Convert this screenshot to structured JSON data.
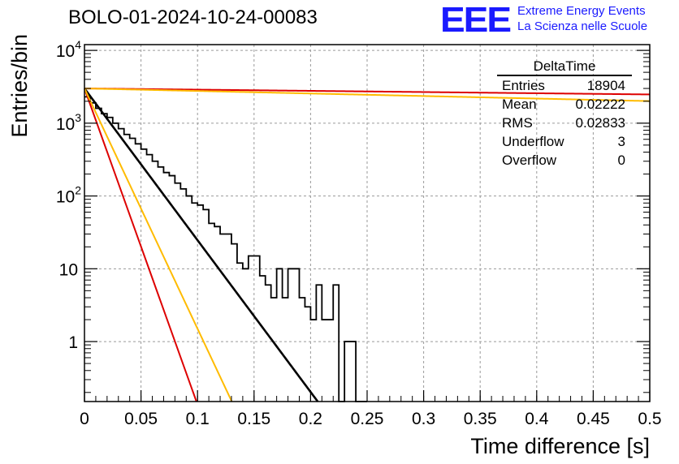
{
  "title": "BOLO-01-2024-10-24-00083",
  "logo": {
    "mark": "EEE",
    "line1": "Extreme Energy Events",
    "line2": "La Scienza nelle Scuole",
    "color": "#1a1aff"
  },
  "stats": {
    "name": "DeltaTime",
    "rows": [
      {
        "label": "Entries",
        "value": "18904"
      },
      {
        "label": "Mean",
        "value": "0.02222"
      },
      {
        "label": "RMS",
        "value": "0.02833"
      },
      {
        "label": "Underflow",
        "value": "3"
      },
      {
        "label": "Overflow",
        "value": "0"
      }
    ]
  },
  "chart_data": {
    "type": "line",
    "xlabel": "Time difference [s]",
    "ylabel": "Entries/bin",
    "xlim": [
      0,
      0.5
    ],
    "ylim": [
      0.15,
      12000
    ],
    "yscale": "log",
    "grid": true,
    "x_ticks": [
      "0",
      "0.05",
      "0.1",
      "0.15",
      "0.2",
      "0.25",
      "0.3",
      "0.35",
      "0.4",
      "0.45",
      "0.5"
    ],
    "x_tick_values": [
      0,
      0.05,
      0.1,
      0.15,
      0.2,
      0.25,
      0.3,
      0.35,
      0.4,
      0.45,
      0.5
    ],
    "y_ticks": [
      {
        "value": 1,
        "base": "1",
        "exp": ""
      },
      {
        "value": 10,
        "base": "10",
        "exp": ""
      },
      {
        "value": 100,
        "base": "10",
        "exp": "2"
      },
      {
        "value": 1000,
        "base": "10",
        "exp": "3"
      },
      {
        "value": 10000,
        "base": "10",
        "exp": "4"
      }
    ],
    "histogram": {
      "bin_width": 0.005,
      "color": "#000000",
      "values": [
        2300,
        1900,
        1600,
        1350,
        1200,
        1000,
        840,
        700,
        620,
        520,
        440,
        370,
        300,
        250,
        210,
        190,
        150,
        125,
        100,
        80,
        75,
        65,
        42,
        38,
        30,
        30,
        22,
        12,
        10,
        15,
        15,
        8,
        6,
        4,
        10,
        4,
        10,
        10,
        4,
        3,
        2,
        6,
        2,
        2,
        6,
        0,
        1,
        1,
        0,
        0
      ]
    },
    "curves": [
      {
        "color": "#000000",
        "y0": 3000,
        "rate": 48
      },
      {
        "color": "#dd0000",
        "y0": 3000,
        "rate": 0.38
      },
      {
        "color": "#ffbb00",
        "y0": 3000,
        "rate": 0.8
      },
      {
        "color": "#dd0000",
        "y0": 3000,
        "rate": 100
      },
      {
        "color": "#ffbb00",
        "y0": 3000,
        "rate": 76
      }
    ]
  }
}
